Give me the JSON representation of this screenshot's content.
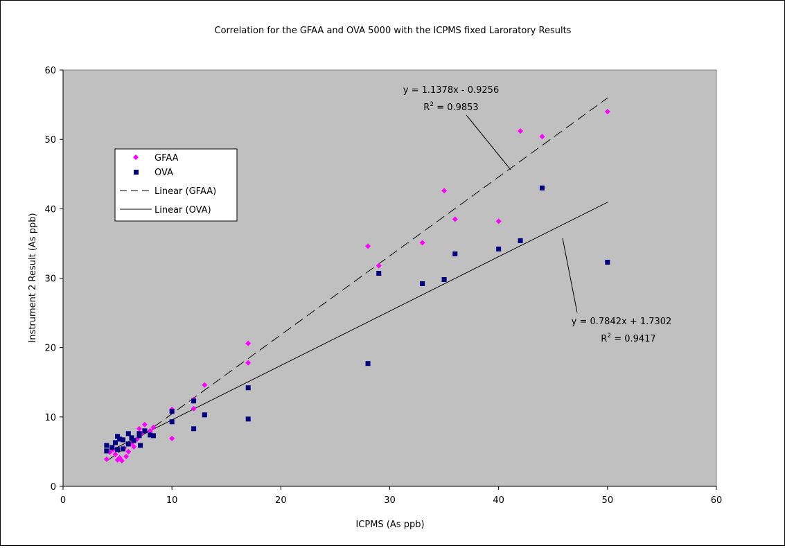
{
  "chart_data": {
    "type": "scatter",
    "title": "Correlation for the GFAA and OVA 5000 with the ICPMS fixed Laroratory Results",
    "xlabel": "ICPMS (As ppb)",
    "ylabel": "Instrument 2 Result (As ppb)",
    "xlim": [
      0,
      60
    ],
    "ylim": [
      0,
      60
    ],
    "xticks": [
      0,
      10,
      20,
      30,
      40,
      50,
      60
    ],
    "yticks": [
      0,
      10,
      20,
      30,
      40,
      50,
      60
    ],
    "grid": false,
    "legend_position": "left",
    "plot_background": "#c0c0c0",
    "series": [
      {
        "name": "GFAA",
        "marker": "diamond",
        "color": "#ff00ff",
        "points": [
          [
            4,
            3.9
          ],
          [
            4.3,
            4.9
          ],
          [
            4.6,
            5.3
          ],
          [
            4.8,
            4.6
          ],
          [
            5,
            3.8
          ],
          [
            5.2,
            4.1
          ],
          [
            5.4,
            3.7
          ],
          [
            5.6,
            5.5
          ],
          [
            5.8,
            4.3
          ],
          [
            6,
            5.0
          ],
          [
            6.3,
            6.2
          ],
          [
            6.5,
            5.7
          ],
          [
            6.8,
            6.8
          ],
          [
            7,
            8.3
          ],
          [
            7.2,
            7.6
          ],
          [
            7.5,
            8.9
          ],
          [
            8,
            8.0
          ],
          [
            8.3,
            8.5
          ],
          [
            10,
            6.9
          ],
          [
            10,
            11.1
          ],
          [
            12,
            12.5
          ],
          [
            12,
            11.2
          ],
          [
            13,
            14.6
          ],
          [
            17,
            17.8
          ],
          [
            17,
            20.6
          ],
          [
            28,
            34.6
          ],
          [
            29,
            31.8
          ],
          [
            33,
            35.1
          ],
          [
            35,
            42.6
          ],
          [
            36,
            38.5
          ],
          [
            40,
            38.2
          ],
          [
            42,
            51.2
          ],
          [
            44,
            50.4
          ],
          [
            50,
            54.0
          ]
        ]
      },
      {
        "name": "OVA",
        "marker": "square",
        "color": "#000080",
        "points": [
          [
            4,
            5.9
          ],
          [
            4,
            5.1
          ],
          [
            4.5,
            5.6
          ],
          [
            4.8,
            6.3
          ],
          [
            5,
            7.2
          ],
          [
            5,
            5.3
          ],
          [
            5.2,
            6.8
          ],
          [
            5.5,
            5.4
          ],
          [
            5.5,
            6.7
          ],
          [
            6,
            6.1
          ],
          [
            6,
            7.6
          ],
          [
            6.3,
            7.0
          ],
          [
            6.5,
            6.6
          ],
          [
            7,
            7.3
          ],
          [
            7,
            7.6
          ],
          [
            7.1,
            5.9
          ],
          [
            7.5,
            8.0
          ],
          [
            8,
            7.4
          ],
          [
            8.3,
            7.3
          ],
          [
            10,
            10.8
          ],
          [
            10,
            9.3
          ],
          [
            12,
            12.3
          ],
          [
            12,
            8.3
          ],
          [
            13,
            10.3
          ],
          [
            17,
            14.2
          ],
          [
            17,
            9.7
          ],
          [
            28,
            17.7
          ],
          [
            29,
            30.7
          ],
          [
            33,
            29.2
          ],
          [
            35,
            29.8
          ],
          [
            36,
            33.5
          ],
          [
            40,
            34.2
          ],
          [
            42,
            35.4
          ],
          [
            44,
            43.0
          ],
          [
            50,
            32.3
          ]
        ]
      }
    ],
    "trendlines": [
      {
        "name": "Linear (GFAA)",
        "style": "dashed",
        "slope": 1.1378,
        "intercept": -0.9256,
        "x_range": [
          4,
          50
        ],
        "equation": "y = 1.1378x - 0.9256",
        "r2_prefix": "R",
        "r2_sup": "2",
        "r2_value": " = 0.9853"
      },
      {
        "name": "Linear (OVA)",
        "style": "solid",
        "slope": 0.7842,
        "intercept": 1.7302,
        "x_range": [
          4,
          50
        ],
        "equation": "y = 0.7842x + 1.7302",
        "r2_prefix": "R",
        "r2_sup": "2",
        "r2_value": " = 0.9417"
      }
    ]
  }
}
